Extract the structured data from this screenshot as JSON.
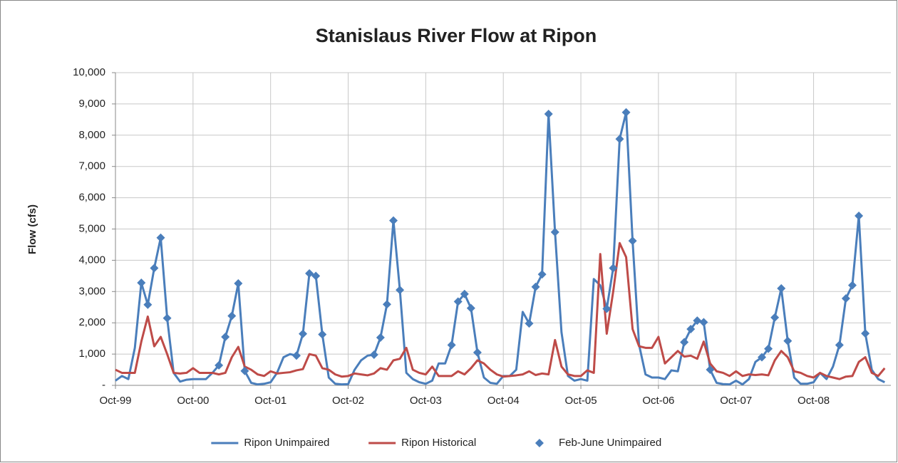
{
  "chart_data": {
    "type": "line",
    "title": "Stanislaus River Flow at Ripon",
    "y_label": "Flow (cfs)",
    "categories": [
      "Oct-99",
      null,
      null,
      null,
      null,
      null,
      null,
      null,
      null,
      null,
      null,
      null,
      "Oct-00",
      null,
      null,
      null,
      null,
      null,
      null,
      null,
      null,
      null,
      null,
      null,
      "Oct-01",
      null,
      null,
      null,
      null,
      null,
      null,
      null,
      null,
      null,
      null,
      null,
      "Oct-02",
      null,
      null,
      null,
      null,
      null,
      null,
      null,
      null,
      null,
      null,
      null,
      "Oct-03",
      null,
      null,
      null,
      null,
      null,
      null,
      null,
      null,
      null,
      null,
      null,
      "Oct-04",
      null,
      null,
      null,
      null,
      null,
      null,
      null,
      null,
      null,
      null,
      null,
      "Oct-05",
      null,
      null,
      null,
      null,
      null,
      null,
      null,
      null,
      null,
      null,
      null,
      "Oct-06",
      null,
      null,
      null,
      null,
      null,
      null,
      null,
      null,
      null,
      null,
      null,
      "Oct-07",
      null,
      null,
      null,
      null,
      null,
      null,
      null,
      null,
      null,
      null,
      null,
      "Oct-08",
      null,
      null,
      null,
      null,
      null,
      null,
      null,
      null,
      null,
      null,
      null
    ],
    "series": [
      {
        "name": "Ripon Unimpaired",
        "color": "#4a7ebb",
        "line": true,
        "marker": null,
        "values": [
          150,
          300,
          200,
          1200,
          3280,
          2580,
          3750,
          4720,
          2150,
          400,
          120,
          180,
          200,
          200,
          200,
          400,
          640,
          1550,
          2220,
          3260,
          460,
          80,
          30,
          50,
          100,
          400,
          900,
          1000,
          950,
          1650,
          3580,
          3500,
          1630,
          250,
          50,
          30,
          40,
          500,
          800,
          950,
          980,
          1530,
          2590,
          5270,
          3050,
          400,
          200,
          100,
          50,
          150,
          700,
          700,
          1290,
          2680,
          2920,
          2470,
          1050,
          250,
          80,
          50,
          300,
          300,
          500,
          2350,
          1980,
          3150,
          3550,
          8680,
          4900,
          1700,
          300,
          150,
          200,
          150,
          3400,
          3200,
          2450,
          3750,
          7880,
          8730,
          4620,
          1300,
          350,
          250,
          250,
          200,
          480,
          450,
          1380,
          1800,
          2070,
          2020,
          500,
          80,
          40,
          30,
          150,
          30,
          200,
          750,
          900,
          1170,
          2170,
          3100,
          1420,
          250,
          50,
          50,
          100,
          400,
          200,
          600,
          1290,
          2780,
          3200,
          5420,
          1660,
          500,
          200,
          100
        ]
      },
      {
        "name": "Ripon Historical",
        "color": "#be4b48",
        "line": true,
        "marker": null,
        "values": [
          500,
          400,
          400,
          400,
          1400,
          2200,
          1250,
          1550,
          1000,
          400,
          380,
          400,
          550,
          400,
          400,
          400,
          350,
          400,
          900,
          1230,
          600,
          500,
          350,
          300,
          450,
          380,
          400,
          420,
          480,
          520,
          1000,
          950,
          550,
          500,
          350,
          280,
          300,
          380,
          350,
          320,
          380,
          550,
          500,
          800,
          850,
          1200,
          500,
          400,
          350,
          600,
          300,
          300,
          300,
          450,
          350,
          550,
          800,
          700,
          500,
          350,
          280,
          300,
          320,
          350,
          450,
          330,
          380,
          350,
          1450,
          600,
          350,
          300,
          300,
          480,
          400,
          4200,
          1650,
          3000,
          4550,
          4100,
          1800,
          1250,
          1200,
          1200,
          1550,
          700,
          900,
          1100,
          920,
          950,
          850,
          1400,
          700,
          450,
          400,
          300,
          450,
          300,
          350,
          330,
          350,
          320,
          800,
          1100,
          900,
          450,
          400,
          300,
          250,
          400,
          300,
          250,
          200,
          280,
          300,
          750,
          900,
          400,
          300,
          550
        ]
      },
      {
        "name": "Feb-June Unimpaired",
        "color": "#4a7ebb",
        "line": false,
        "marker": "diamond",
        "values": [
          null,
          null,
          null,
          null,
          3280,
          2580,
          3750,
          4720,
          2150,
          null,
          null,
          null,
          null,
          null,
          null,
          null,
          640,
          1550,
          2220,
          3260,
          460,
          null,
          null,
          null,
          null,
          null,
          null,
          null,
          950,
          1650,
          3580,
          3500,
          1630,
          null,
          null,
          null,
          null,
          null,
          null,
          null,
          980,
          1530,
          2590,
          5270,
          3050,
          null,
          null,
          null,
          null,
          null,
          null,
          null,
          1290,
          2680,
          2920,
          2470,
          1050,
          null,
          null,
          null,
          null,
          null,
          null,
          null,
          1980,
          3150,
          3550,
          8680,
          4900,
          null,
          null,
          null,
          null,
          null,
          null,
          null,
          2450,
          3750,
          7880,
          8730,
          4620,
          null,
          null,
          null,
          null,
          null,
          null,
          null,
          1380,
          1800,
          2070,
          2020,
          500,
          null,
          null,
          null,
          null,
          null,
          null,
          null,
          900,
          1170,
          2170,
          3100,
          1420,
          null,
          null,
          null,
          null,
          null,
          null,
          null,
          1290,
          2780,
          3200,
          5420,
          1660,
          null,
          null,
          null
        ]
      }
    ],
    "ylim": [
      0,
      10000
    ],
    "yticks": [
      {
        "value": 0,
        "label": "-"
      },
      {
        "value": 1000,
        "label": "1,000"
      },
      {
        "value": 2000,
        "label": "2,000"
      },
      {
        "value": 3000,
        "label": "3,000"
      },
      {
        "value": 4000,
        "label": "4,000"
      },
      {
        "value": 5000,
        "label": "5,000"
      },
      {
        "value": 6000,
        "label": "6,000"
      },
      {
        "value": 7000,
        "label": "7,000"
      },
      {
        "value": 8000,
        "label": "8,000"
      },
      {
        "value": 9000,
        "label": "9,000"
      },
      {
        "value": 10000,
        "label": "10,000"
      }
    ],
    "grid": true,
    "legend": "bottom"
  }
}
